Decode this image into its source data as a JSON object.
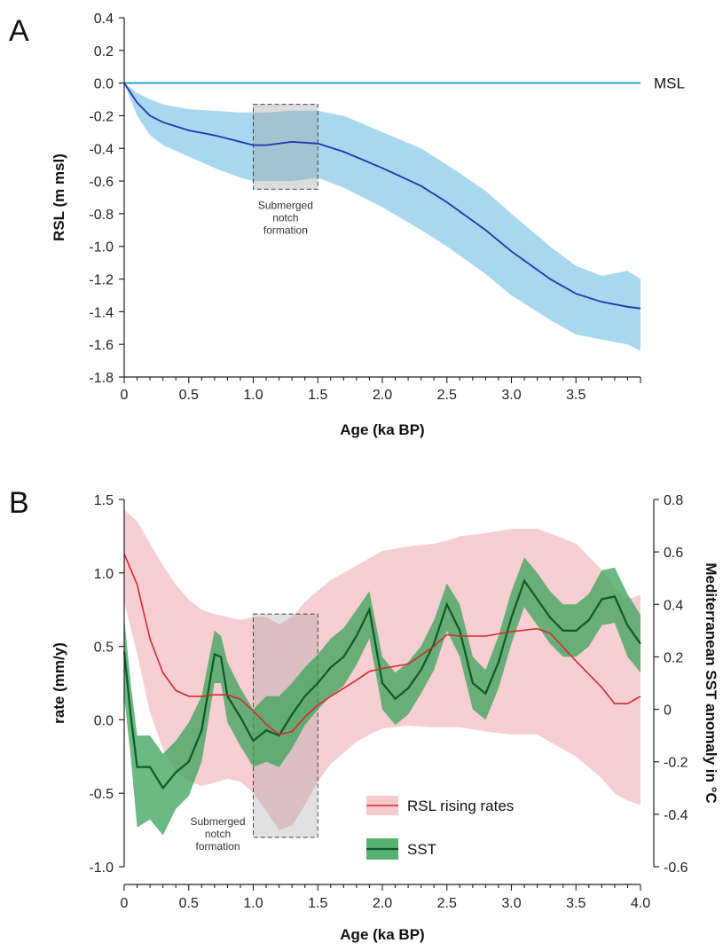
{
  "chart_data": [
    {
      "panel": "A",
      "type": "line",
      "xlabel": "Age (ka BP)",
      "ylabel": "RSL (m msl)",
      "xlim": [
        0,
        4.0
      ],
      "ylim": [
        -1.8,
        0.4
      ],
      "x_ticks": [
        0,
        0.5,
        1.0,
        1.5,
        2.0,
        2.5,
        3.0,
        3.5
      ],
      "x_tick_labels": [
        "0",
        "0.5",
        "1.0",
        "1.5",
        "2.0",
        "2.5",
        "3.0",
        "3.5"
      ],
      "y_ticks": [
        0.4,
        0.2,
        0.0,
        -0.2,
        -0.4,
        -0.6,
        -0.8,
        -1.0,
        -1.2,
        -1.4,
        -1.6,
        -1.8
      ],
      "y_tick_labels": [
        "0.4",
        "0.2",
        "0.0",
        "-0.2",
        "-0.4",
        "-0.6",
        "-0.8",
        "-1.0",
        "-1.2",
        "-1.4",
        "-1.6",
        "-1.8"
      ],
      "reference_line": {
        "label": "MSL",
        "y": 0.0,
        "color": "#29a3d6"
      },
      "highlight": {
        "x": [
          1.0,
          1.5
        ],
        "y": [
          -0.65,
          -0.13
        ],
        "label_lines": [
          "Submerged",
          "notch",
          "formation"
        ]
      },
      "series": [
        {
          "color": "#2233aa",
          "band_color": "#a8d8f0",
          "x": [
            0,
            0.1,
            0.2,
            0.3,
            0.5,
            0.7,
            0.9,
            1.0,
            1.1,
            1.3,
            1.5,
            1.7,
            2.0,
            2.3,
            2.5,
            2.8,
            3.0,
            3.3,
            3.5,
            3.7,
            3.9,
            4.0
          ],
          "y": [
            0.0,
            -0.12,
            -0.2,
            -0.24,
            -0.29,
            -0.32,
            -0.36,
            -0.38,
            -0.38,
            -0.36,
            -0.37,
            -0.42,
            -0.52,
            -0.63,
            -0.73,
            -0.9,
            -1.03,
            -1.2,
            -1.29,
            -1.34,
            -1.37,
            -1.38
          ],
          "upper": [
            0.0,
            -0.06,
            -0.1,
            -0.13,
            -0.16,
            -0.17,
            -0.18,
            -0.18,
            -0.18,
            -0.17,
            -0.17,
            -0.2,
            -0.3,
            -0.4,
            -0.5,
            -0.66,
            -0.8,
            -1.0,
            -1.12,
            -1.18,
            -1.15,
            -1.2
          ],
          "lower": [
            0.0,
            -0.2,
            -0.32,
            -0.38,
            -0.45,
            -0.52,
            -0.58,
            -0.6,
            -0.6,
            -0.6,
            -0.58,
            -0.64,
            -0.76,
            -0.9,
            -1.0,
            -1.17,
            -1.3,
            -1.45,
            -1.54,
            -1.57,
            -1.6,
            -1.64
          ]
        }
      ]
    },
    {
      "panel": "B",
      "type": "line",
      "xlabel": "Age (ka BP)",
      "ylabel": "rate (mm/y)",
      "y2label": "Mediterranean SST anomaly in °C",
      "xlim": [
        0,
        4.0
      ],
      "ylim": [
        -1.0,
        1.5
      ],
      "y2lim": [
        -0.6,
        0.8
      ],
      "x_ticks": [
        0,
        0.5,
        1.0,
        1.5,
        2.0,
        2.5,
        3.0,
        3.5,
        4.0
      ],
      "x_tick_labels": [
        "0",
        "0.5",
        "1.0",
        "1.5",
        "2.0",
        "2.5",
        "3.0",
        "3.5",
        "4.0"
      ],
      "y_ticks": [
        1.5,
        1.0,
        0.5,
        0.0,
        -0.5,
        -1.0
      ],
      "y_tick_labels": [
        "1.5",
        "1.0",
        "0.5",
        "0.0",
        "-0.5",
        "-1.0"
      ],
      "y2_ticks": [
        0.8,
        0.6,
        0.4,
        0.2,
        0,
        -0.2,
        -0.4,
        -0.6
      ],
      "y2_tick_labels": [
        "0.8",
        "0.6",
        "0.4",
        "0.2",
        "0",
        "-0.2",
        "-0.4",
        "-0.6"
      ],
      "highlight": {
        "x": [
          1.0,
          1.5
        ],
        "y": [
          -0.8,
          0.72
        ],
        "label_lines": [
          "Submerged",
          "notch",
          "formation"
        ]
      },
      "legend_position": "bottom-center",
      "series": [
        {
          "name": "RSL rising rates",
          "axis": "left",
          "color": "#d42b2b",
          "band_color": "#f6c9cd",
          "x": [
            0,
            0.1,
            0.2,
            0.3,
            0.4,
            0.5,
            0.6,
            0.7,
            0.8,
            0.9,
            1.0,
            1.1,
            1.2,
            1.3,
            1.4,
            1.5,
            1.6,
            1.8,
            1.9,
            2.0,
            2.2,
            2.4,
            2.5,
            2.6,
            2.8,
            3.0,
            3.2,
            3.3,
            3.5,
            3.7,
            3.8,
            3.9,
            4.0
          ],
          "y": [
            1.13,
            0.92,
            0.55,
            0.32,
            0.2,
            0.16,
            0.16,
            0.17,
            0.17,
            0.14,
            0.06,
            -0.03,
            -0.1,
            -0.08,
            0.02,
            0.1,
            0.16,
            0.27,
            0.33,
            0.35,
            0.38,
            0.5,
            0.58,
            0.57,
            0.57,
            0.6,
            0.62,
            0.59,
            0.4,
            0.22,
            0.11,
            0.11,
            0.16
          ],
          "upper": [
            1.43,
            1.35,
            1.2,
            1.05,
            0.92,
            0.82,
            0.75,
            0.72,
            0.7,
            0.68,
            0.7,
            0.7,
            0.65,
            0.7,
            0.8,
            0.88,
            0.95,
            1.05,
            1.1,
            1.15,
            1.18,
            1.2,
            1.22,
            1.25,
            1.27,
            1.3,
            1.3,
            1.27,
            1.2,
            1.02,
            0.9,
            0.82,
            0.85
          ],
          "lower": [
            0.8,
            0.45,
            0.05,
            -0.2,
            -0.35,
            -0.42,
            -0.45,
            -0.43,
            -0.4,
            -0.42,
            -0.5,
            -0.62,
            -0.75,
            -0.72,
            -0.58,
            -0.42,
            -0.3,
            -0.15,
            -0.1,
            -0.06,
            -0.04,
            -0.05,
            -0.05,
            -0.05,
            -0.08,
            -0.1,
            -0.1,
            -0.15,
            -0.25,
            -0.4,
            -0.5,
            -0.55,
            -0.58
          ]
        },
        {
          "name": "SST",
          "axis": "right",
          "color": "#0c5a26",
          "band_color": "#3aa35a",
          "x": [
            0,
            0.05,
            0.1,
            0.2,
            0.3,
            0.4,
            0.5,
            0.6,
            0.7,
            0.75,
            0.8,
            0.9,
            1.0,
            1.1,
            1.2,
            1.3,
            1.4,
            1.5,
            1.6,
            1.7,
            1.8,
            1.9,
            2.0,
            2.1,
            2.2,
            2.3,
            2.4,
            2.5,
            2.6,
            2.7,
            2.8,
            2.9,
            3.0,
            3.1,
            3.2,
            3.3,
            3.4,
            3.5,
            3.6,
            3.7,
            3.8,
            3.9,
            4.0
          ],
          "y": [
            0.22,
            -0.02,
            -0.22,
            -0.22,
            -0.3,
            -0.24,
            -0.2,
            -0.08,
            0.21,
            0.2,
            0.05,
            -0.03,
            -0.12,
            -0.08,
            -0.1,
            -0.02,
            0.05,
            0.1,
            0.16,
            0.2,
            0.28,
            0.38,
            0.1,
            0.04,
            0.08,
            0.15,
            0.25,
            0.4,
            0.3,
            0.1,
            0.06,
            0.18,
            0.35,
            0.49,
            0.42,
            0.35,
            0.3,
            0.3,
            0.34,
            0.42,
            0.43,
            0.32,
            0.25
          ],
          "upper": [
            0.35,
            0.1,
            -0.1,
            -0.1,
            -0.17,
            -0.12,
            -0.05,
            0.05,
            0.3,
            0.28,
            0.18,
            0.08,
            0.0,
            0.05,
            0.05,
            0.1,
            0.16,
            0.21,
            0.27,
            0.31,
            0.38,
            0.45,
            0.2,
            0.14,
            0.18,
            0.24,
            0.34,
            0.48,
            0.4,
            0.2,
            0.15,
            0.28,
            0.45,
            0.58,
            0.52,
            0.45,
            0.4,
            0.4,
            0.44,
            0.53,
            0.54,
            0.44,
            0.36
          ],
          "lower": [
            0.05,
            -0.18,
            -0.45,
            -0.42,
            -0.48,
            -0.38,
            -0.33,
            -0.2,
            0.1,
            0.1,
            -0.05,
            -0.14,
            -0.22,
            -0.2,
            -0.22,
            -0.15,
            -0.06,
            0.0,
            0.05,
            0.09,
            0.17,
            0.27,
            0.0,
            -0.06,
            -0.02,
            0.06,
            0.15,
            0.3,
            0.2,
            0.0,
            -0.04,
            0.08,
            0.25,
            0.39,
            0.32,
            0.25,
            0.2,
            0.2,
            0.24,
            0.32,
            0.33,
            0.2,
            0.14
          ]
        }
      ]
    }
  ]
}
